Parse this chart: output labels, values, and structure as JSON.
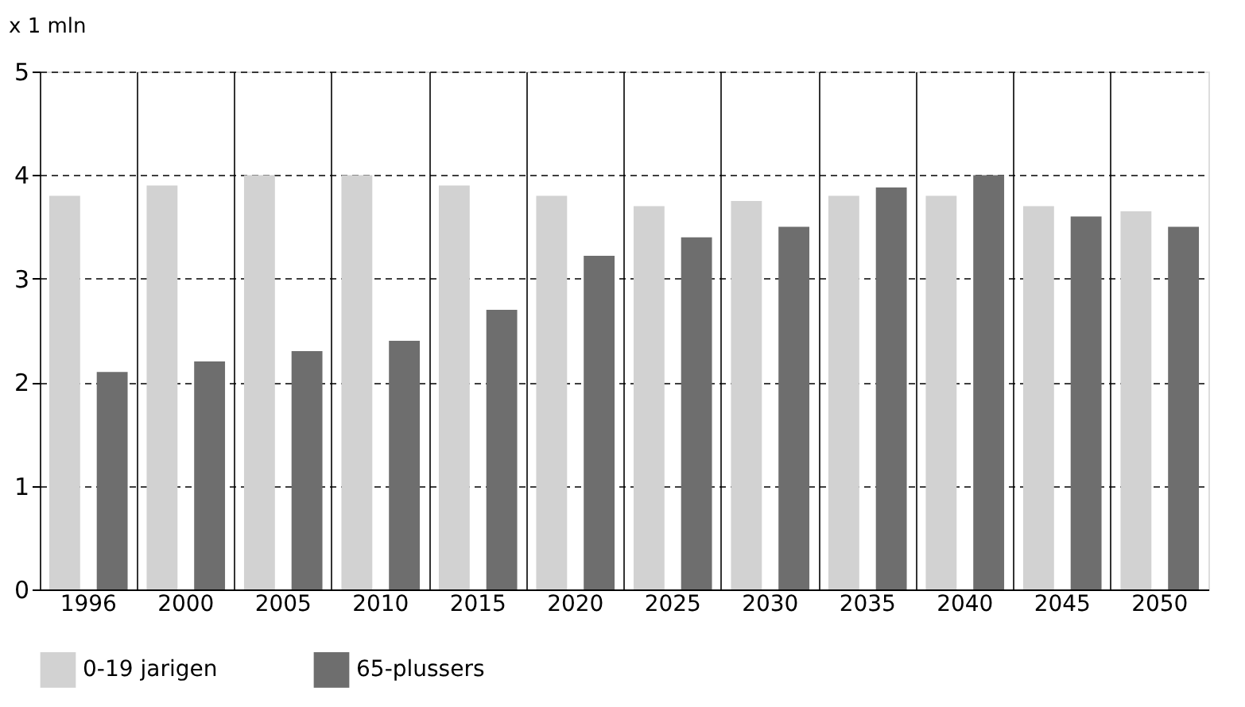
{
  "chart_data": {
    "type": "bar",
    "ylabel": "x 1 mln",
    "categories": [
      "1996",
      "2000",
      "2005",
      "2010",
      "2015",
      "2020",
      "2025",
      "2030",
      "2035",
      "2040",
      "2045",
      "2050"
    ],
    "series": [
      {
        "name": "0-19 jarigen",
        "color": "#d2d2d2",
        "values": [
          3.8,
          3.9,
          4.0,
          4.0,
          3.9,
          3.8,
          3.7,
          3.75,
          3.8,
          3.8,
          3.7,
          3.65
        ]
      },
      {
        "name": "65-plussers",
        "color": "#6e6e6e",
        "values": [
          2.1,
          2.2,
          2.3,
          2.4,
          2.7,
          3.22,
          3.4,
          3.5,
          3.88,
          4.0,
          3.6,
          3.5
        ]
      }
    ],
    "ylim": [
      0,
      5
    ],
    "yticks": [
      0,
      1,
      2,
      3,
      4,
      5
    ],
    "grid": true,
    "legend": "bottom left"
  }
}
